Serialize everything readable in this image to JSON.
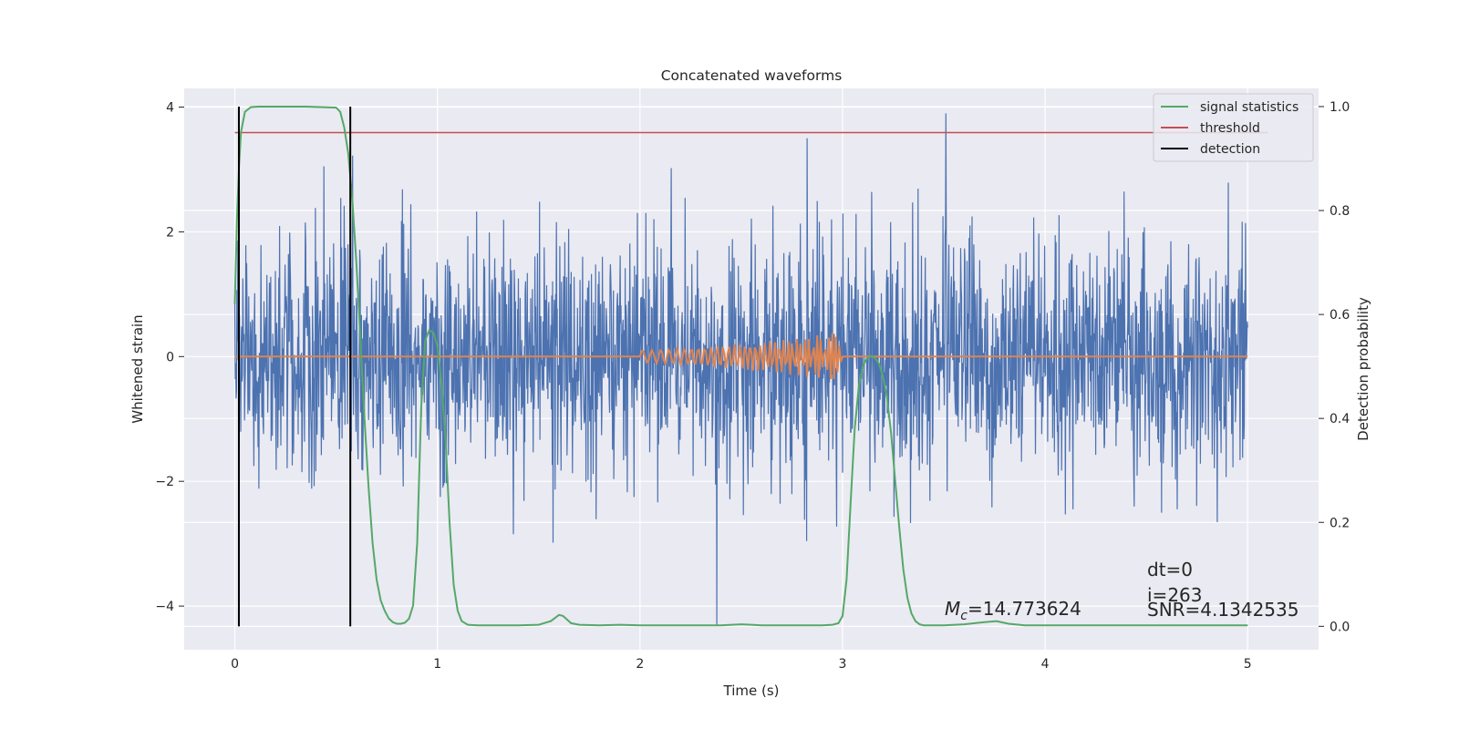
{
  "chart_data": {
    "type": "line",
    "title": "Concatenated waveforms",
    "xlabel": "Time (s)",
    "ylabel": "Whitened strain",
    "y2label": "Detection probability",
    "xlim": [
      -0.25,
      5.35
    ],
    "ylim": [
      -4.7,
      4.3
    ],
    "y2lim": [
      -0.045,
      1.035
    ],
    "xticks": [
      0,
      1,
      2,
      3,
      4,
      5
    ],
    "yticks": [
      -4,
      -2,
      0,
      2,
      4
    ],
    "y2ticks": [
      0.0,
      0.2,
      0.4,
      0.6,
      0.8,
      1.0
    ],
    "grid": true,
    "legend_position": "top-right",
    "colors": {
      "strain": "#4c72b0",
      "template": "#dd8452",
      "signal_statistics": "#55a868",
      "threshold": "#c44e52",
      "detection": "#000000",
      "plot_background": "#eaeaf2",
      "grid": "#ffffff"
    },
    "series": [
      {
        "name": "signal statistics",
        "axis": "right",
        "x": [
          0.0,
          0.01,
          0.02,
          0.03,
          0.05,
          0.08,
          0.12,
          0.2,
          0.35,
          0.5,
          0.52,
          0.54,
          0.56,
          0.58,
          0.6,
          0.62,
          0.64,
          0.66,
          0.68,
          0.7,
          0.72,
          0.74,
          0.76,
          0.78,
          0.8,
          0.82,
          0.84,
          0.86,
          0.88,
          0.9,
          0.92,
          0.94,
          0.96,
          0.98,
          1.0,
          1.02,
          1.04,
          1.06,
          1.08,
          1.1,
          1.12,
          1.15,
          1.2,
          1.4,
          1.5,
          1.56,
          1.6,
          1.62,
          1.66,
          1.7,
          1.8,
          1.9,
          2.0,
          2.2,
          2.4,
          2.5,
          2.55,
          2.6,
          2.7,
          2.8,
          2.9,
          2.95,
          2.98,
          3.0,
          3.02,
          3.04,
          3.06,
          3.08,
          3.1,
          3.12,
          3.14,
          3.16,
          3.18,
          3.2,
          3.22,
          3.24,
          3.26,
          3.28,
          3.3,
          3.32,
          3.34,
          3.36,
          3.38,
          3.4,
          3.42,
          3.45,
          3.5,
          3.6,
          3.7,
          3.76,
          3.82,
          3.9,
          4.0,
          4.2,
          4.5,
          4.8,
          5.0
        ],
        "y": [
          0.62,
          0.78,
          0.88,
          0.95,
          0.99,
          0.999,
          1.0,
          1.0,
          1.0,
          0.998,
          0.99,
          0.96,
          0.91,
          0.82,
          0.7,
          0.55,
          0.4,
          0.27,
          0.16,
          0.09,
          0.05,
          0.03,
          0.015,
          0.008,
          0.005,
          0.005,
          0.007,
          0.015,
          0.04,
          0.16,
          0.42,
          0.55,
          0.57,
          0.565,
          0.54,
          0.47,
          0.36,
          0.2,
          0.08,
          0.03,
          0.01,
          0.003,
          0.002,
          0.002,
          0.003,
          0.01,
          0.022,
          0.02,
          0.006,
          0.003,
          0.002,
          0.003,
          0.002,
          0.002,
          0.002,
          0.004,
          0.003,
          0.002,
          0.002,
          0.002,
          0.002,
          0.003,
          0.006,
          0.02,
          0.09,
          0.24,
          0.38,
          0.46,
          0.5,
          0.515,
          0.52,
          0.516,
          0.505,
          0.48,
          0.44,
          0.37,
          0.28,
          0.19,
          0.11,
          0.055,
          0.025,
          0.01,
          0.004,
          0.002,
          0.002,
          0.002,
          0.002,
          0.004,
          0.008,
          0.01,
          0.005,
          0.002,
          0.002,
          0.002,
          0.002,
          0.002,
          0.002
        ]
      },
      {
        "name": "threshold",
        "axis": "right",
        "x": [
          0.0,
          5.1
        ],
        "y": [
          0.95,
          0.95
        ]
      },
      {
        "name": "detection",
        "axis": "right",
        "x": [
          0.02,
          0.57
        ],
        "y_range": [
          0.0,
          1.0
        ]
      }
    ],
    "strain_noise": {
      "axis": "left",
      "x_range": [
        0.0,
        5.0
      ],
      "typical_range": [
        -3.0,
        3.6
      ],
      "max_peak": 3.9,
      "min_trough": -4.3
    },
    "injected_chirp": {
      "axis": "left",
      "x_range": [
        2.0,
        3.0
      ],
      "y_range": [
        -0.4,
        0.4
      ]
    },
    "annotations": {
      "mc_symbol": "M",
      "mc_subscript": "c",
      "mc_value": "=14.773624",
      "dt": "dt=0",
      "i": "i=263",
      "snr": "SNR=4.1342535"
    }
  }
}
